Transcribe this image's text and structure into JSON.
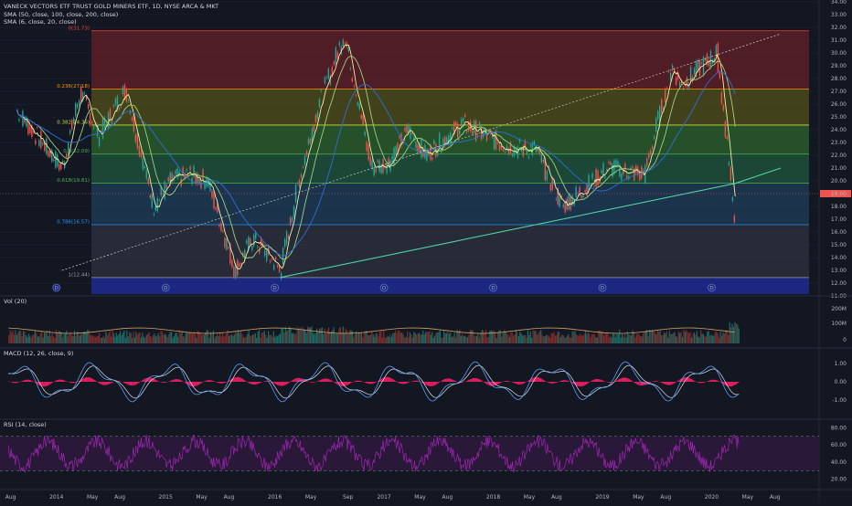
{
  "header": {
    "symbol_line": "VANECK VECTORS ETF TRUST GOLD MINERS ETF, 1D, NYSE ARCA & MKT",
    "sma_long": "SMA (50, close, 100, close, 200, close)",
    "sma_short": "SMA (6, close, 20, close)"
  },
  "colors": {
    "background": "#131722",
    "candle_up": "#26a69a",
    "candle_down": "#ef5350",
    "trendline": "#4fd1a5",
    "sma_fast": "#f0f0a0",
    "sma_mid": "#9fd07a",
    "sma_slow": "#2e6ed8",
    "macd": "#5b9cf6",
    "signal": "#e0e0e0",
    "histogram": "#e91e63",
    "rsi": "#9c27b0",
    "price_marker": "#ef5350"
  },
  "chart_data": {
    "type": "line",
    "x_axis": {
      "ticks": [
        "Aug",
        "2014",
        "May",
        "Aug",
        "2015",
        "May",
        "Aug",
        "2016",
        "May",
        "Sep",
        "2017",
        "May",
        "Aug",
        "2018",
        "May",
        "Aug",
        "2019",
        "May",
        "Aug",
        "2020",
        "May",
        "Aug"
      ]
    },
    "price_panel": {
      "ylim": [
        11,
        34
      ],
      "y_ticks": [
        "34.00",
        "33.00",
        "32.00",
        "31.00",
        "30.00",
        "29.00",
        "28.00",
        "27.00",
        "26.00",
        "25.00",
        "24.00",
        "23.00",
        "22.00",
        "21.00",
        "20.00",
        "19.00",
        "18.00",
        "17.00",
        "16.00",
        "15.00",
        "14.00",
        "13.00",
        "12.00",
        "11.00"
      ],
      "last_price": "19.00",
      "fibonacci": [
        {
          "label": "0(31.73)",
          "value": 31.73,
          "color": "#f44336"
        },
        {
          "label": "0.236(27.18)",
          "value": 27.18,
          "color": "#ff9800"
        },
        {
          "label": "0.382(24.36)",
          "value": 24.36,
          "color": "#cddc39"
        },
        {
          "label": "0.5(22.09)",
          "value": 22.09,
          "color": "#4caf50"
        },
        {
          "label": "0.618(19.81)",
          "value": 19.81,
          "color": "#4caf50"
        },
        {
          "label": "0.786(16.57)",
          "value": 16.57,
          "color": "#2196f3"
        },
        {
          "label": "1(12.44)",
          "value": 12.44,
          "color": "#9e9e9e"
        }
      ],
      "price_points": [
        [
          "Aug 2013",
          25.5
        ],
        [
          "2014",
          21.0
        ],
        [
          "Mar 2014",
          27.0
        ],
        [
          "May 2014",
          23.5
        ],
        [
          "Aug 2014",
          27.2
        ],
        [
          "Nov 2014",
          18.0
        ],
        [
          "2015",
          20.0
        ],
        [
          "Mar 2015",
          20.5
        ],
        [
          "May 2015",
          20.0
        ],
        [
          "Aug 2015",
          13.0
        ],
        [
          "Oct 2015",
          15.5
        ],
        [
          "2016",
          13.0
        ],
        [
          "Mar 2016",
          20.0
        ],
        [
          "May 2016",
          25.5
        ],
        [
          "Aug 2016",
          31.5
        ],
        [
          "Nov 2016",
          21.0
        ],
        [
          "2017",
          21.5
        ],
        [
          "Mar 2017",
          24.0
        ],
        [
          "May 2017",
          22.0
        ],
        [
          "Sep 2017",
          24.5
        ],
        [
          "2018",
          23.0
        ],
        [
          "Mar 2018",
          22.5
        ],
        [
          "May 2018",
          22.5
        ],
        [
          "Aug 2018",
          18.0
        ],
        [
          "2019",
          21.0
        ],
        [
          "May 2019",
          20.5
        ],
        [
          "Aug 2019",
          29.0
        ],
        [
          "Sep 2019",
          27.5
        ],
        [
          "2020",
          30.0
        ],
        [
          "Mar 2020",
          16.5
        ]
      ],
      "trend_support": [
        [
          "2016",
          12.44
        ],
        [
          "Mar 2020",
          19.8
        ],
        [
          "Aug 2020",
          21.0
        ]
      ],
      "trend_upper": [
        [
          "2014",
          13.0
        ],
        [
          "Aug 2020",
          31.5
        ]
      ]
    },
    "volume_panel": {
      "title": "Vol (20)",
      "y_ticks": [
        "200M",
        "100M",
        "0"
      ]
    },
    "macd_panel": {
      "title": "MACD (12, 26, close, 9)",
      "y_ticks": [
        "1.00",
        "0.00",
        "-1.00"
      ]
    },
    "rsi_panel": {
      "title": "RSI (14, close)",
      "y_ticks": [
        "80.00",
        "60.00",
        "40.00",
        "20.00"
      ],
      "upper_band": 70,
      "lower_band": 30
    }
  }
}
